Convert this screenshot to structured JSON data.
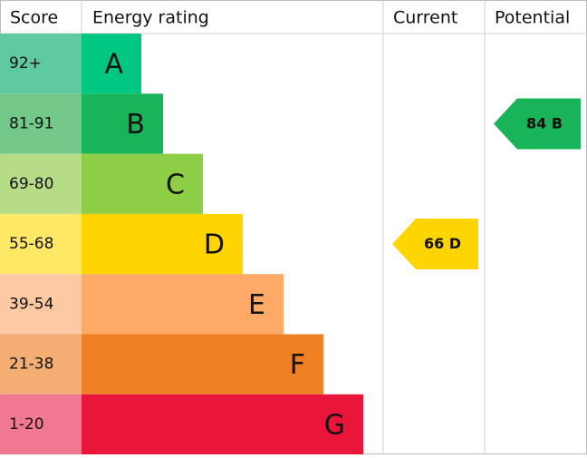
{
  "header": {
    "score": "Score",
    "rating": "Energy rating",
    "current": "Current",
    "potential": "Potential"
  },
  "bands": [
    {
      "score": "92+",
      "letter": "A",
      "color": "#00c781",
      "score_color": "#5fc9a0"
    },
    {
      "score": "81-91",
      "letter": "B",
      "color": "#19b459",
      "score_color": "#72c98a"
    },
    {
      "score": "69-80",
      "letter": "C",
      "color": "#8dce46",
      "score_color": "#b7dc87"
    },
    {
      "score": "55-68",
      "letter": "D",
      "color": "#ffd500",
      "score_color": "#ffe866"
    },
    {
      "score": "39-54",
      "letter": "E",
      "color": "#fcaa65",
      "score_color": "#fcc9a2"
    },
    {
      "score": "21-38",
      "letter": "F",
      "color": "#ef8023",
      "score_color": "#f4ad73"
    },
    {
      "score": "1-20",
      "letter": "G",
      "color": "#e9153b",
      "score_color": "#f07890"
    }
  ],
  "current": {
    "value": 66,
    "rating": "D",
    "color": "#ffd500"
  },
  "potential": {
    "value": 84,
    "rating": "B",
    "color": "#19b459"
  }
}
